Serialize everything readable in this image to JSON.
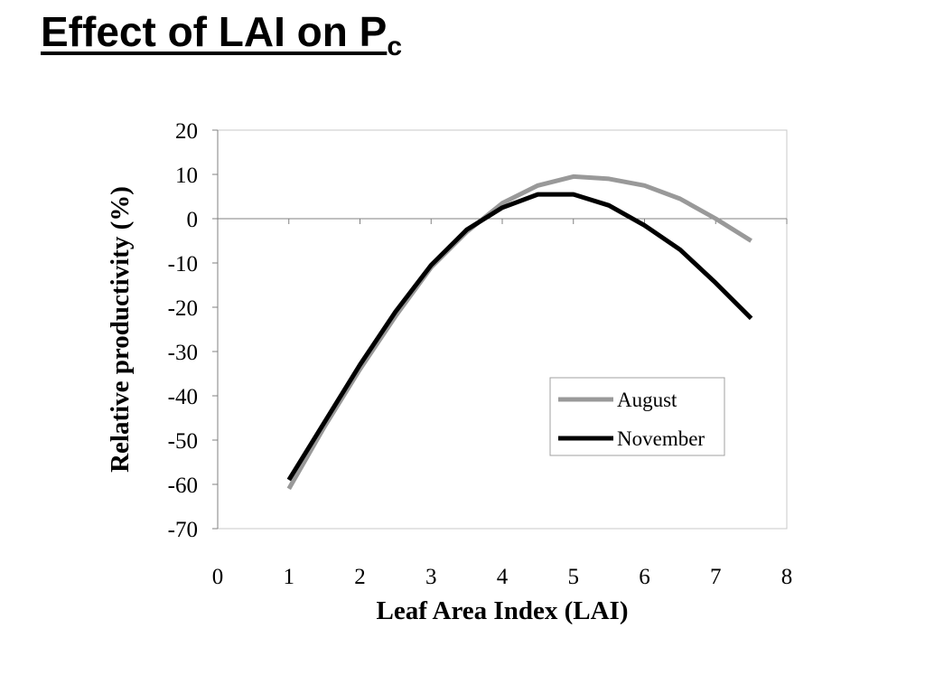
{
  "slide": {
    "title_main": "Effect of LAI on P",
    "title_sub": "c"
  },
  "chart_data": {
    "type": "line",
    "xlabel": "Leaf Area Index (LAI)",
    "ylabel": "Relative productivity (%)",
    "xlim": [
      0,
      8
    ],
    "ylim": [
      -70,
      20
    ],
    "x_ticks": [
      0,
      1,
      2,
      3,
      4,
      5,
      6,
      7,
      8
    ],
    "y_ticks": [
      20,
      10,
      0,
      -10,
      -20,
      -30,
      -40,
      -50,
      -60,
      -70
    ],
    "grid": false,
    "zero_line": true,
    "legend_position": "lower-right",
    "series": [
      {
        "name": "August",
        "color": "#999999",
        "x": [
          1,
          1.5,
          2,
          2.5,
          3,
          3.5,
          4,
          4.5,
          5,
          5.5,
          6,
          6.5,
          7,
          7.5
        ],
        "values": [
          -61,
          -47,
          -34,
          -22,
          -11,
          -3,
          3.5,
          7.5,
          9.5,
          9,
          7.5,
          4.5,
          0,
          -5
        ]
      },
      {
        "name": "November",
        "color": "#000000",
        "x": [
          1,
          1.5,
          2,
          2.5,
          3,
          3.5,
          4,
          4.5,
          5,
          5.5,
          6,
          6.5,
          7,
          7.5
        ],
        "values": [
          -59,
          -46,
          -33,
          -21,
          -10.5,
          -2.5,
          2.5,
          5.5,
          5.5,
          3,
          -1.5,
          -7,
          -14.5,
          -22.5
        ]
      }
    ]
  }
}
